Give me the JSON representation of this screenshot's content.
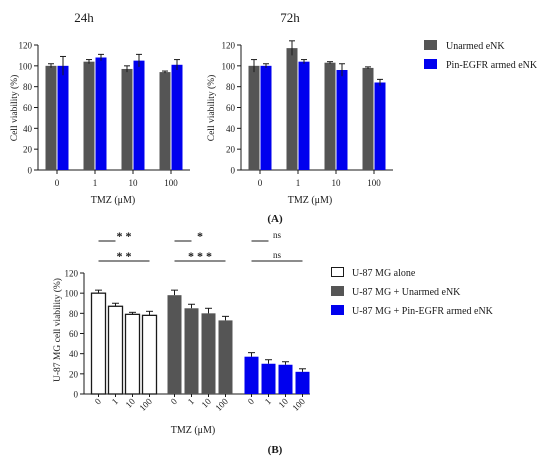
{
  "panel_a": {
    "label": "(A)",
    "legend": [
      {
        "name": "Unarmed eNK",
        "color": "#555555"
      },
      {
        "name": "Pin-EGFR armed eNK",
        "color": "#0000ee"
      }
    ]
  },
  "panel_b": {
    "label": "(B)",
    "legend": [
      {
        "name": "U-87 MG alone",
        "color": "#ffffff"
      },
      {
        "name": "U-87 MG + Unarmed eNK",
        "color": "#555555"
      },
      {
        "name": "U-87 MG + Pin-EGFR armed eNK",
        "color": "#0000ee"
      }
    ],
    "significance": [
      {
        "text": "* *",
        "group": "alone",
        "level": 1
      },
      {
        "text": "* *",
        "group": "alone",
        "level": 2
      },
      {
        "text": "*",
        "group": "unarmed",
        "level": 1
      },
      {
        "text": "* * *",
        "group": "unarmed",
        "level": 2
      },
      {
        "text": "ns",
        "group": "armed",
        "level": 1
      },
      {
        "text": "ns",
        "group": "armed",
        "level": 2
      }
    ]
  },
  "chart_data": [
    {
      "type": "bar",
      "title": "24h",
      "xlabel": "TMZ (μM)",
      "ylabel": "Cell viability (%)",
      "ylim": [
        0,
        120
      ],
      "yticks": [
        0,
        20,
        40,
        60,
        80,
        100,
        120
      ],
      "categories": [
        "0",
        "1",
        "10",
        "100"
      ],
      "series": [
        {
          "name": "Unarmed eNK",
          "color": "#555555",
          "values": [
            100,
            104,
            97,
            94
          ],
          "errors": [
            2,
            2,
            3,
            1
          ]
        },
        {
          "name": "Pin-EGFR armed eNK",
          "color": "#0000ee",
          "values": [
            100,
            108,
            105,
            101
          ],
          "errors": [
            9,
            3,
            6,
            5
          ]
        }
      ]
    },
    {
      "type": "bar",
      "title": "72h",
      "xlabel": "TMZ (μM)",
      "ylabel": "Cell viability (%)",
      "ylim": [
        0,
        120
      ],
      "yticks": [
        0,
        20,
        40,
        60,
        80,
        100,
        120
      ],
      "categories": [
        "0",
        "1",
        "10",
        "100"
      ],
      "series": [
        {
          "name": "Unarmed eNK",
          "color": "#555555",
          "values": [
            100,
            117,
            103,
            98
          ],
          "errors": [
            6,
            7,
            1,
            1
          ]
        },
        {
          "name": "Pin-EGFR armed eNK",
          "color": "#0000ee",
          "values": [
            100,
            104,
            96,
            84
          ],
          "errors": [
            2,
            2,
            6,
            3
          ]
        }
      ]
    },
    {
      "type": "bar",
      "xlabel": "TMZ (μM)",
      "ylabel": "U-87 MG cell viability (%)",
      "ylim": [
        0,
        120
      ],
      "yticks": [
        0,
        20,
        40,
        60,
        80,
        100,
        120
      ],
      "categories": [
        "0",
        "1",
        "10",
        "100"
      ],
      "series": [
        {
          "name": "U-87 MG alone",
          "color": "#ffffff",
          "values": [
            100,
            87,
            79,
            78
          ],
          "errors": [
            3,
            3,
            2,
            4
          ]
        },
        {
          "name": "U-87 MG + Unarmed eNK",
          "color": "#555555",
          "values": [
            98,
            85,
            80,
            73
          ],
          "errors": [
            5,
            4,
            5,
            4
          ]
        },
        {
          "name": "U-87 MG + Pin-EGFR armed eNK",
          "color": "#0000ee",
          "values": [
            37,
            30,
            29,
            22
          ],
          "errors": [
            4,
            4,
            3,
            3
          ]
        }
      ]
    }
  ]
}
